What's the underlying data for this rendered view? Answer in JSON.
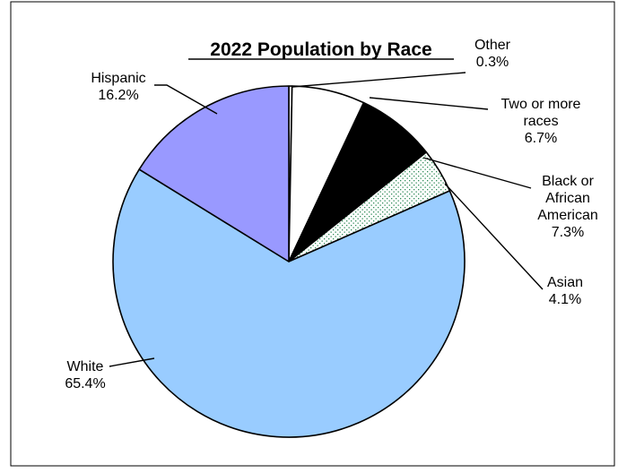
{
  "chart_data": {
    "type": "pie",
    "title": "2022 Population by Race",
    "slices": [
      {
        "name": "Other",
        "value": 0.3,
        "label": "0.3%",
        "color": "#ffffff",
        "pattern": "none"
      },
      {
        "name": "Two or more races",
        "value": 6.7,
        "label": "6.7%",
        "color": "#ffffff",
        "pattern": "none"
      },
      {
        "name": "Black or African American",
        "value": 7.3,
        "label": "7.3%",
        "color": "#000000",
        "pattern": "none"
      },
      {
        "name": "Asian",
        "value": 4.1,
        "label": "4.1%",
        "color": "#ffffff",
        "pattern": "green-dots"
      },
      {
        "name": "White",
        "value": 65.4,
        "label": "65.4%",
        "color": "#99ccff",
        "pattern": "none"
      },
      {
        "name": "Hispanic",
        "value": 16.2,
        "label": "16.2%",
        "color": "#9999ff",
        "pattern": "none"
      }
    ],
    "legend": "none",
    "grid": false
  }
}
